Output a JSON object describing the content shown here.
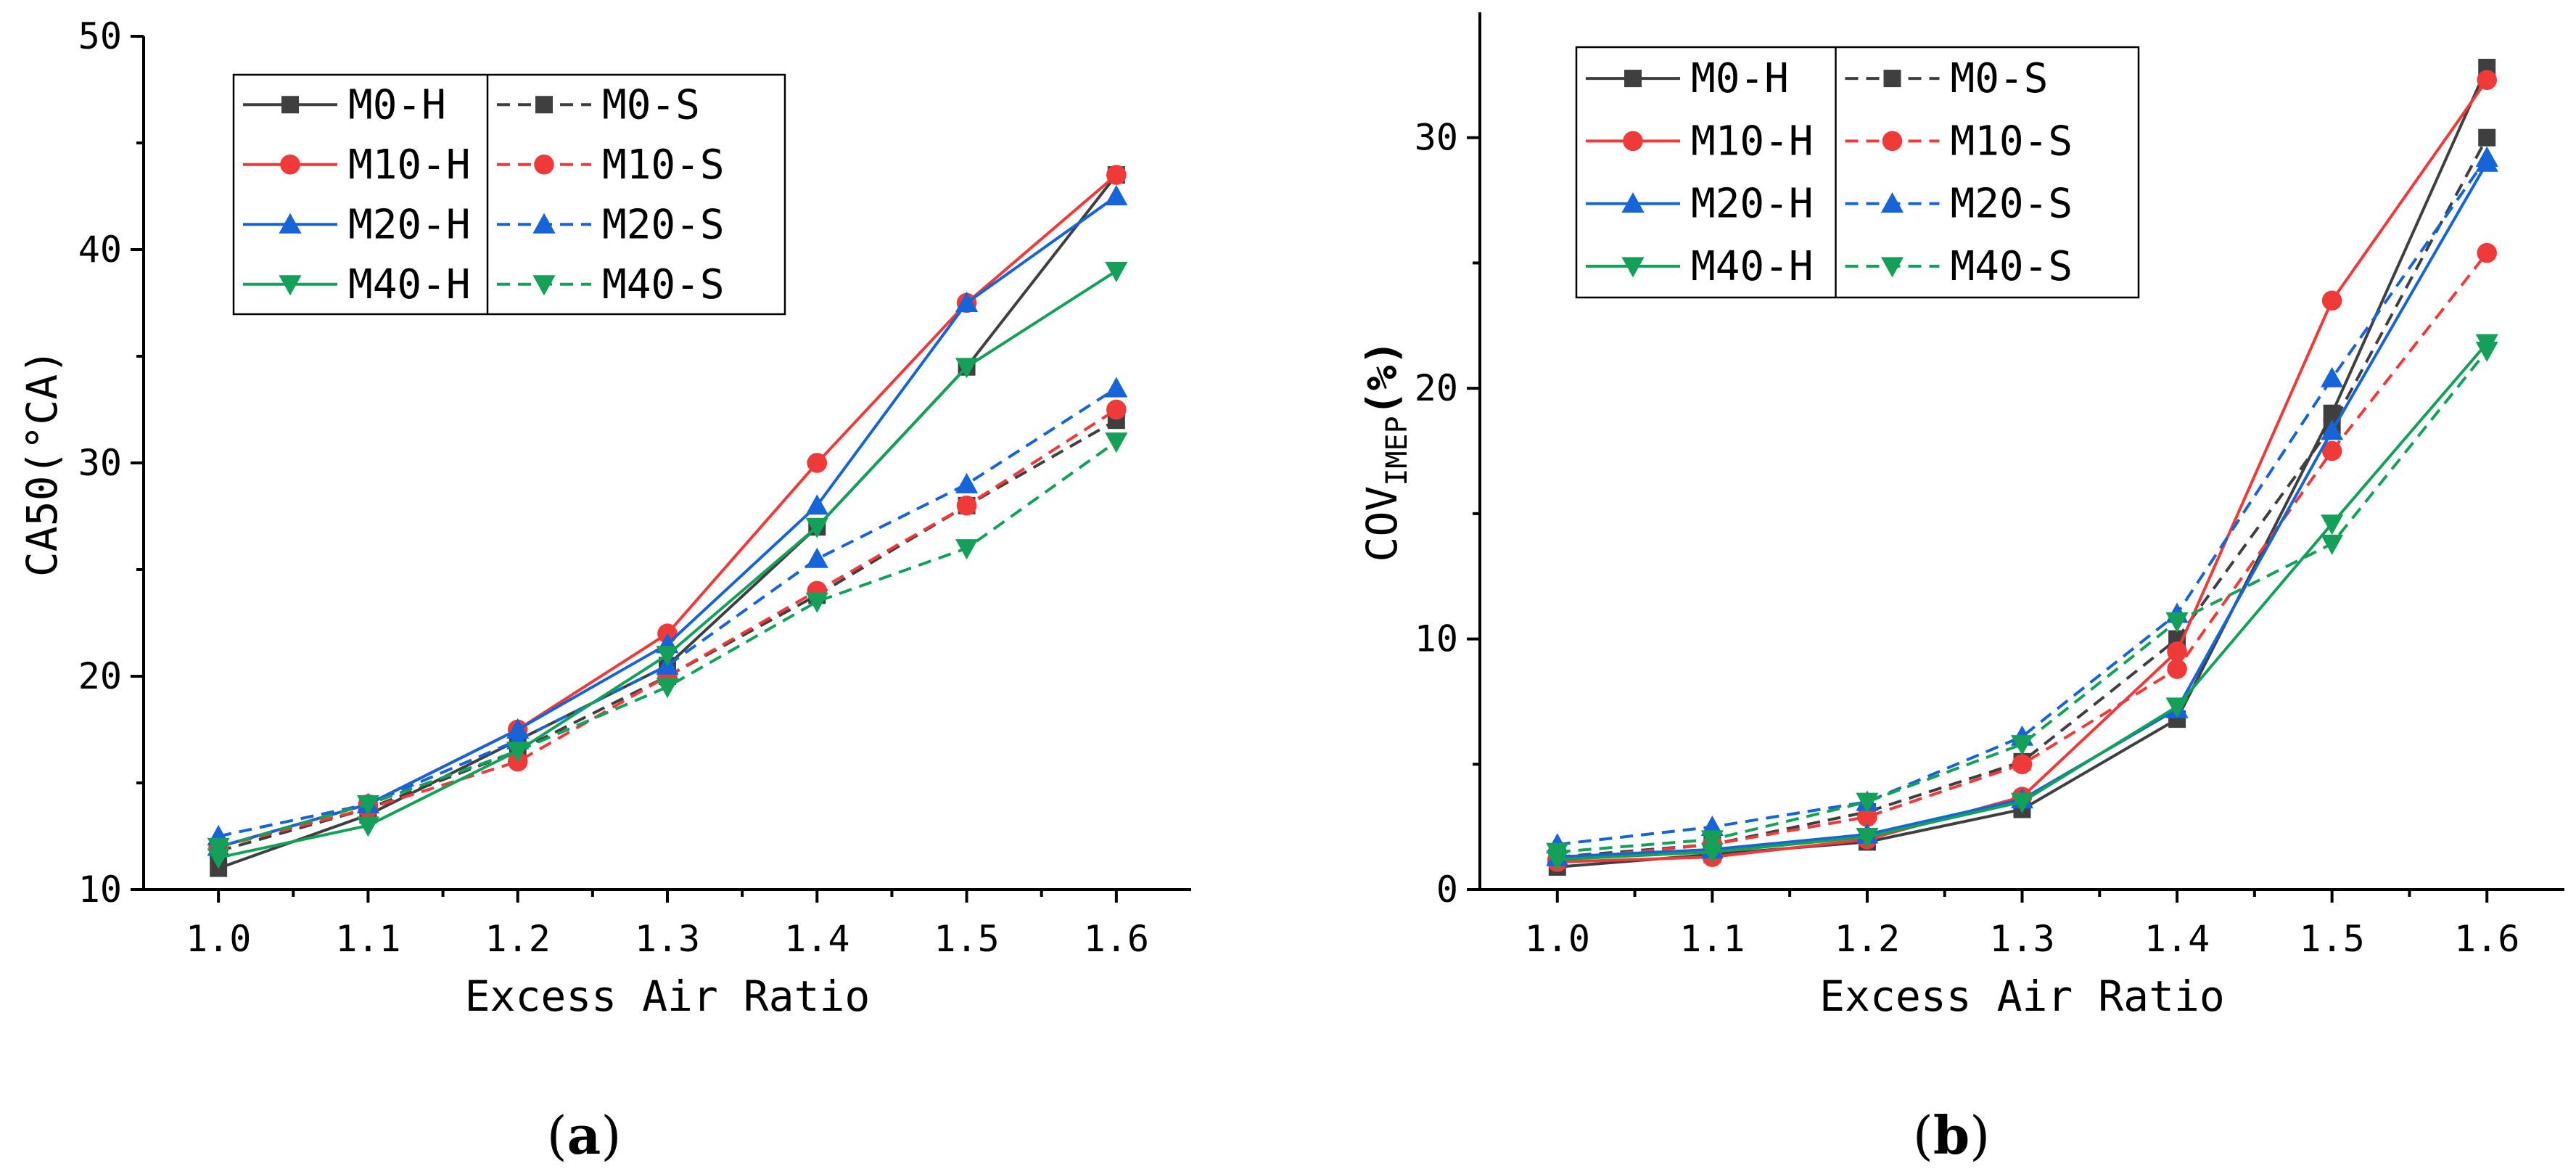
{
  "chart_data": [
    {
      "id": "a",
      "type": "line",
      "panel_label": "a",
      "xlabel": "Excess Air Ratio",
      "ylabel": "CA50(°CA)",
      "x": [
        1.0,
        1.1,
        1.2,
        1.3,
        1.4,
        1.5,
        1.6
      ],
      "x_ticks": [
        "1.0",
        "1.1",
        "1.2",
        "1.3",
        "1.4",
        "1.5",
        "1.6"
      ],
      "xlim": [
        0.95,
        1.65
      ],
      "ylim": [
        10,
        50
      ],
      "y_ticks": [
        "10",
        "20",
        "30",
        "40",
        "50"
      ],
      "y_tick_values": [
        10,
        20,
        30,
        40,
        50
      ],
      "legend": "top-left",
      "grid": false,
      "series": [
        {
          "name": "M0-H",
          "color": "#3f3f3f",
          "dash": false,
          "marker": "square",
          "values": [
            11.0,
            13.5,
            17.0,
            20.5,
            27.0,
            34.5,
            43.5
          ]
        },
        {
          "name": "M0-S",
          "color": "#3f3f3f",
          "dash": true,
          "marker": "square",
          "values": [
            11.8,
            13.8,
            16.5,
            20.0,
            23.8,
            28.0,
            32.0
          ]
        },
        {
          "name": "M10-H",
          "color": "#f03a3a",
          "dash": false,
          "marker": "circle",
          "values": [
            12.0,
            14.0,
            17.5,
            22.0,
            30.0,
            37.5,
            43.5
          ]
        },
        {
          "name": "M10-S",
          "color": "#f03a3a",
          "dash": true,
          "marker": "circle",
          "values": [
            12.0,
            13.8,
            16.0,
            20.0,
            24.0,
            28.0,
            32.5
          ]
        },
        {
          "name": "M20-H",
          "color": "#1664d8",
          "dash": false,
          "marker": "triangle-up",
          "values": [
            12.0,
            14.0,
            17.5,
            21.5,
            28.0,
            37.5,
            42.5
          ]
        },
        {
          "name": "M20-S",
          "color": "#1664d8",
          "dash": true,
          "marker": "triangle-up",
          "values": [
            12.5,
            14.0,
            17.0,
            20.5,
            25.5,
            29.0,
            33.5
          ]
        },
        {
          "name": "M40-H",
          "color": "#15a05a",
          "dash": false,
          "marker": "triangle-down",
          "values": [
            11.5,
            13.0,
            16.5,
            21.0,
            27.0,
            34.5,
            39.0
          ]
        },
        {
          "name": "M40-S",
          "color": "#15a05a",
          "dash": true,
          "marker": "triangle-down",
          "values": [
            12.0,
            14.0,
            16.5,
            19.5,
            23.5,
            26.0,
            31.0
          ]
        }
      ]
    },
    {
      "id": "b",
      "type": "line",
      "panel_label": "b",
      "xlabel": "Excess Air Ratio",
      "ylabel_main": "COV",
      "ylabel_sub": "IMEP",
      "ylabel_unit": "(%)",
      "x": [
        1.0,
        1.1,
        1.2,
        1.3,
        1.4,
        1.5,
        1.6
      ],
      "x_ticks": [
        "1.0",
        "1.1",
        "1.2",
        "1.3",
        "1.4",
        "1.5",
        "1.6"
      ],
      "xlim": [
        0.95,
        1.65
      ],
      "ylim": [
        0,
        35
      ],
      "y_ticks": [
        "0",
        "10",
        "20",
        "30"
      ],
      "y_tick_values": [
        0,
        10,
        20,
        30
      ],
      "legend": "top-left",
      "grid": false,
      "series": [
        {
          "name": "M0-H",
          "color": "#3f3f3f",
          "dash": false,
          "marker": "square",
          "values": [
            0.9,
            1.4,
            1.9,
            3.2,
            6.8,
            19.0,
            32.8
          ]
        },
        {
          "name": "M0-S",
          "color": "#3f3f3f",
          "dash": true,
          "marker": "square",
          "values": [
            1.3,
            1.8,
            3.1,
            5.1,
            10.0,
            18.5,
            30.0
          ]
        },
        {
          "name": "M10-H",
          "color": "#f03a3a",
          "dash": false,
          "marker": "circle",
          "values": [
            1.1,
            1.3,
            2.0,
            3.7,
            9.5,
            23.5,
            32.3
          ]
        },
        {
          "name": "M10-S",
          "color": "#f03a3a",
          "dash": true,
          "marker": "circle",
          "values": [
            1.2,
            1.8,
            2.9,
            5.0,
            8.8,
            17.5,
            25.4
          ]
        },
        {
          "name": "M20-H",
          "color": "#1664d8",
          "dash": false,
          "marker": "triangle-up",
          "values": [
            1.3,
            1.6,
            2.2,
            3.6,
            7.2,
            18.3,
            29.0
          ]
        },
        {
          "name": "M20-S",
          "color": "#1664d8",
          "dash": true,
          "marker": "triangle-up",
          "values": [
            1.8,
            2.5,
            3.5,
            6.1,
            11.0,
            20.4,
            29.2
          ]
        },
        {
          "name": "M40-H",
          "color": "#15a05a",
          "dash": false,
          "marker": "triangle-down",
          "values": [
            1.2,
            1.5,
            2.1,
            3.5,
            7.3,
            14.6,
            21.8
          ]
        },
        {
          "name": "M40-S",
          "color": "#15a05a",
          "dash": true,
          "marker": "triangle-down",
          "values": [
            1.5,
            2.0,
            3.5,
            5.8,
            10.7,
            13.8,
            21.5
          ]
        }
      ]
    }
  ]
}
